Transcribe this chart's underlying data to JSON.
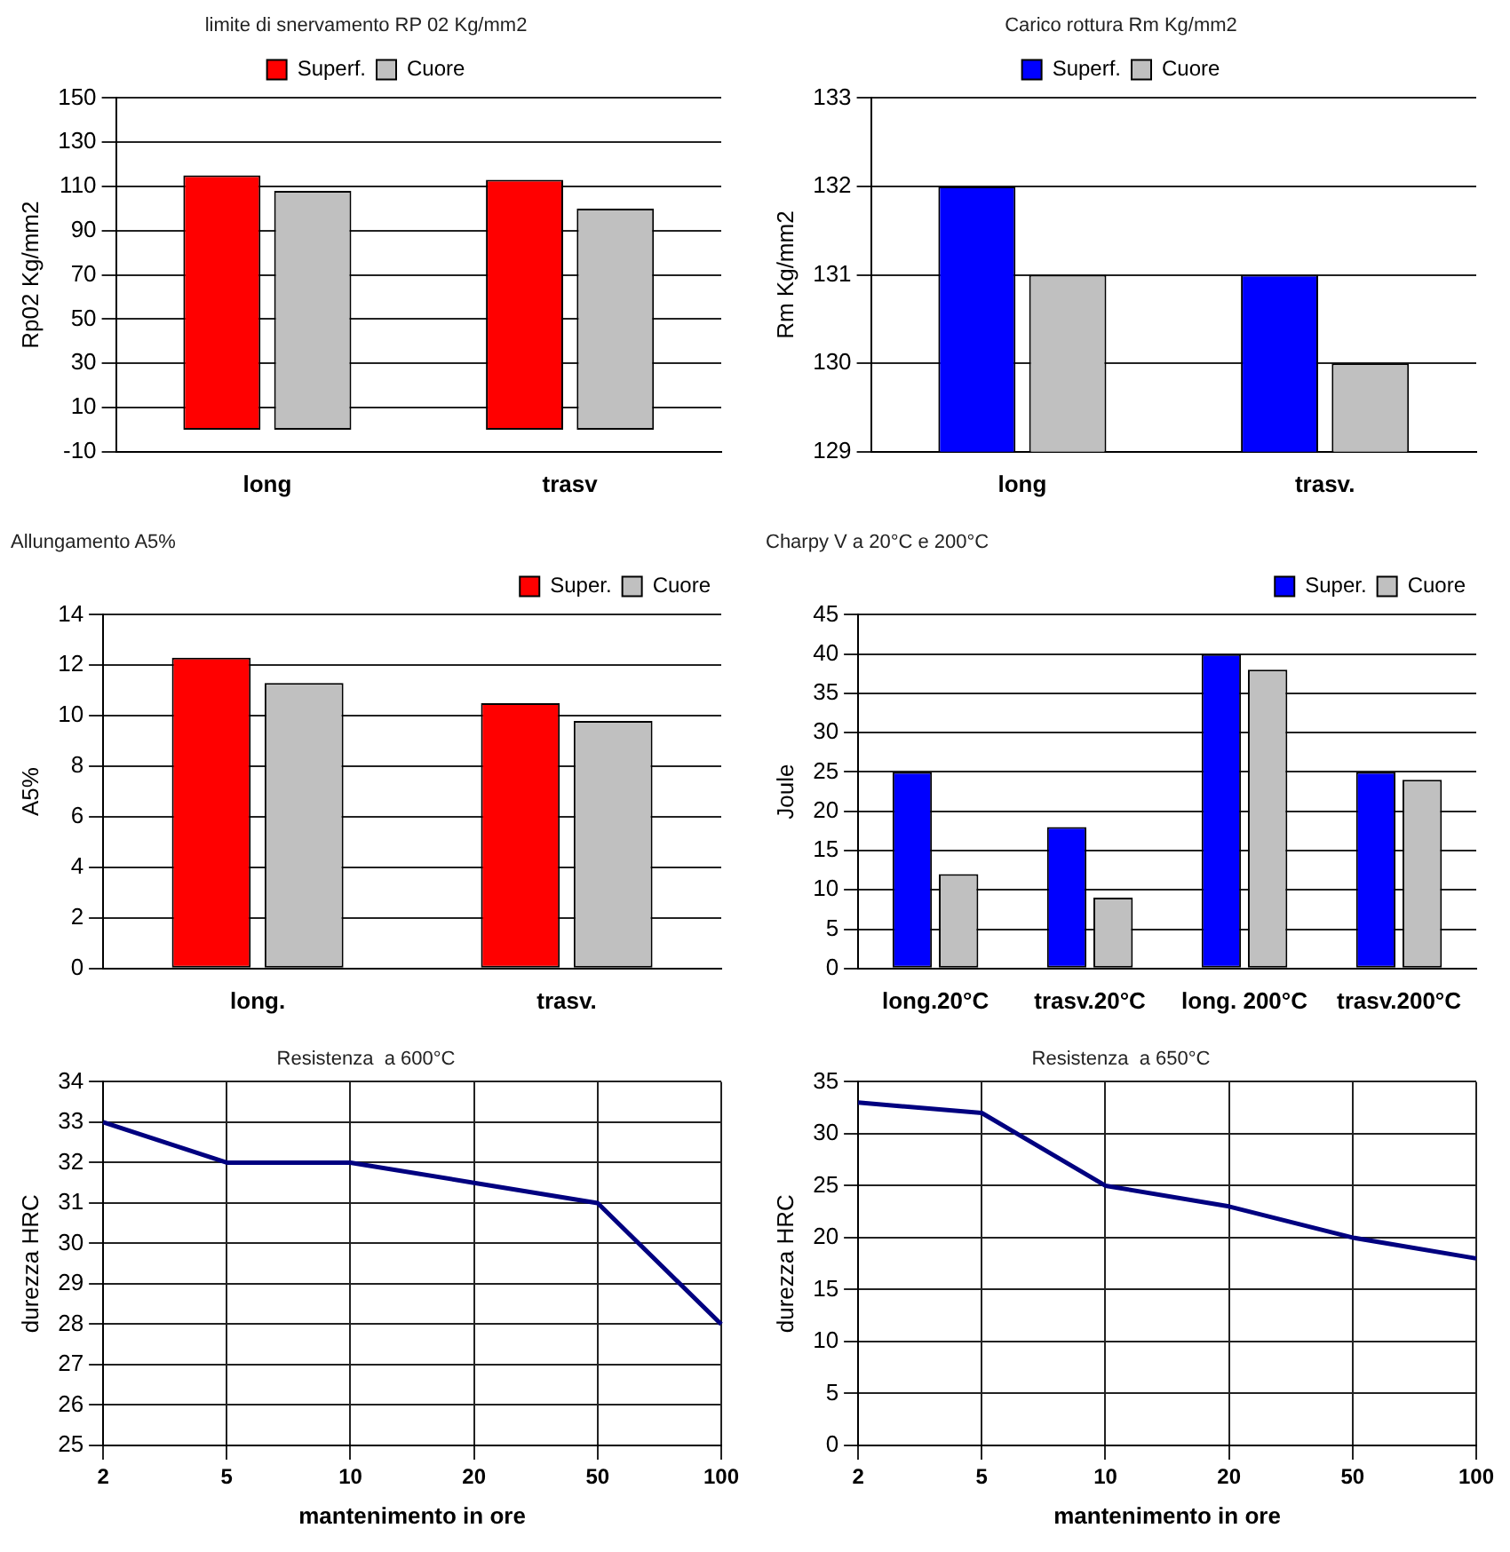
{
  "chart_data": [
    {
      "type": "bar",
      "title": "limite di snervamento RP 02 Kg/mm2",
      "ylabel": "Rp02 Kg/mm2",
      "categories": [
        "long",
        "trasv"
      ],
      "series": [
        {
          "name": "Superf.",
          "color": "#ff0000",
          "values": [
            115,
            113
          ]
        },
        {
          "name": "Cuore",
          "color": "#c0c0c0",
          "values": [
            108,
            100
          ]
        }
      ],
      "ylim": [
        -10,
        150
      ],
      "yticks": [
        -10,
        10,
        30,
        50,
        70,
        90,
        110,
        130,
        150
      ],
      "grid": "y",
      "legend": "top"
    },
    {
      "type": "bar",
      "title": "Carico rottura Rm Kg/mm2",
      "ylabel": "Rm Kg/mm2",
      "categories": [
        "long",
        "trasv."
      ],
      "series": [
        {
          "name": "Superf.",
          "color": "#0000ff",
          "values": [
            132,
            131
          ]
        },
        {
          "name": "Cuore",
          "color": "#c0c0c0",
          "values": [
            131,
            130
          ]
        }
      ],
      "ylim": [
        129,
        133
      ],
      "yticks": [
        129,
        130,
        131,
        132,
        133
      ],
      "grid": "y",
      "legend": "top"
    },
    {
      "type": "bar",
      "title": "Allungamento A5%",
      "ylabel": "A5%",
      "categories": [
        "long.",
        "trasv."
      ],
      "series": [
        {
          "name": "Super.",
          "color": "#ff0000",
          "values": [
            12.3,
            10.5
          ]
        },
        {
          "name": "Cuore",
          "color": "#c0c0c0",
          "values": [
            11.3,
            9.8
          ]
        }
      ],
      "ylim": [
        0,
        14
      ],
      "yticks": [
        0,
        2,
        4,
        6,
        8,
        10,
        12,
        14
      ],
      "grid": "y",
      "legend": "top right"
    },
    {
      "type": "bar",
      "title": "Charpy V a 20°C e 200°C",
      "ylabel": "Joule",
      "categories": [
        "long.20°C",
        "trasv.20°C",
        "long. 200°C",
        "trasv.200°C"
      ],
      "series": [
        {
          "name": "Super.",
          "color": "#0000ff",
          "values": [
            25,
            18,
            40,
            25
          ]
        },
        {
          "name": "Cuore",
          "color": "#c0c0c0",
          "values": [
            12,
            9,
            38,
            24
          ]
        }
      ],
      "ylim": [
        0,
        45
      ],
      "yticks": [
        0,
        5,
        10,
        15,
        20,
        25,
        30,
        35,
        40,
        45
      ],
      "grid": "y",
      "legend": "top right"
    },
    {
      "type": "line",
      "title": "Resistenza  a 600°C",
      "ylabel": "durezza HRC",
      "xlabel": "mantenimento in ore",
      "categories": [
        "2",
        "5",
        "10",
        "20",
        "50",
        "100"
      ],
      "series": [
        {
          "color": "#000080",
          "values": [
            33,
            32,
            32,
            31.5,
            31,
            28
          ]
        }
      ],
      "ylim": [
        25,
        34
      ],
      "yticks": [
        25,
        26,
        27,
        28,
        29,
        30,
        31,
        32,
        33,
        34
      ],
      "grid": true
    },
    {
      "type": "line",
      "title": "Resistenza  a 650°C",
      "ylabel": "durezza HRC",
      "xlabel": "mantenimento in ore",
      "categories": [
        "2",
        "5",
        "10",
        "20",
        "50",
        "100"
      ],
      "series": [
        {
          "color": "#000080",
          "values": [
            33,
            32,
            25,
            23,
            20,
            18
          ]
        }
      ],
      "ylim": [
        0,
        35
      ],
      "yticks": [
        0,
        5,
        10,
        15,
        20,
        25,
        30,
        35
      ],
      "grid": true
    }
  ]
}
